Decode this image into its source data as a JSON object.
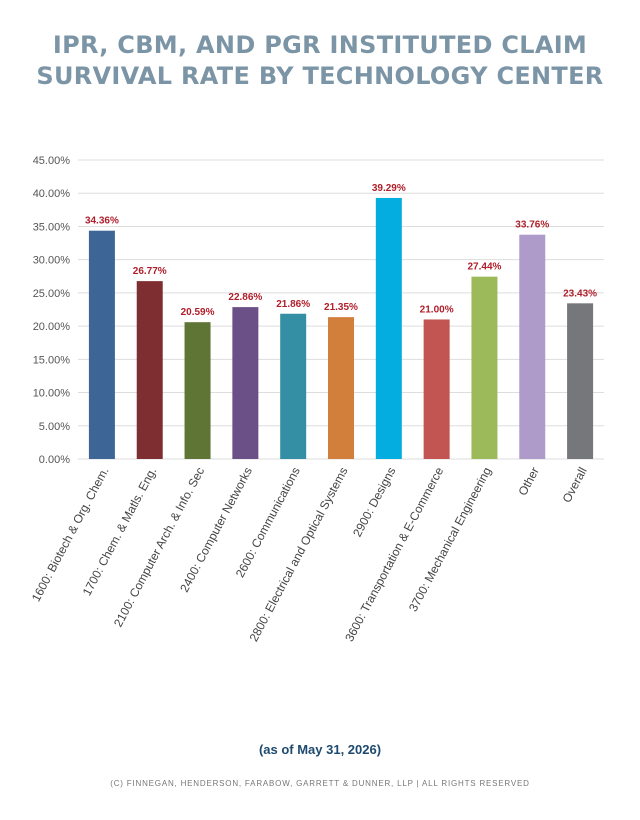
{
  "chart_data": {
    "type": "bar",
    "title_lines": [
      "IPR, CBM, AND PGR INSTITUTED CLAIM",
      "SURVIVAL RATE BY TECHNOLOGY CENTER"
    ],
    "categories": [
      "1600: Biotech & Org. Chem.",
      "1700: Chem. & Matls. Eng.",
      "2100: Computer Arch. & Info. Sec",
      "2400: Computer Networks",
      "2600: Communications",
      "2800: Electrical and Optical Systems",
      "2900: Designs",
      "3600: Transportation & E-Commerce",
      "3700: Mechanical Engineering",
      "Other",
      "Overall"
    ],
    "values": [
      34.36,
      26.77,
      20.59,
      22.86,
      21.86,
      21.35,
      39.29,
      21.0,
      27.44,
      33.76,
      23.43
    ],
    "value_labels": [
      "34.36%",
      "26.77%",
      "20.59%",
      "22.86%",
      "21.86%",
      "21.35%",
      "39.29%",
      "21.00%",
      "27.44%",
      "33.76%",
      "23.43%"
    ],
    "bar_colors": [
      "#3d6596",
      "#7e2e31",
      "#5e7535",
      "#6a5087",
      "#348fa4",
      "#d17f3b",
      "#04ade0",
      "#c25452",
      "#9cba5a",
      "#ae9bc9",
      "#76777b"
    ],
    "ylim": [
      0,
      45
    ],
    "y_ticks": [
      0,
      5,
      10,
      15,
      20,
      25,
      30,
      35,
      40,
      45
    ],
    "y_tick_labels": [
      "0.00%",
      "5.00%",
      "10.00%",
      "15.00%",
      "20.00%",
      "25.00%",
      "30.00%",
      "35.00%",
      "40.00%",
      "45.00%"
    ],
    "grid": true,
    "legend": "none"
  },
  "footer": {
    "as_of": "(as of May 31, 2026)",
    "copyright": "(C) FINNEGAN, HENDERSON, FARABOW, GARRETT & DUNNER, LLP | ALL RIGHTS RESERVED"
  },
  "colors": {
    "title": "#7b95a6",
    "data_label": "#b01e2a",
    "as_of": "#1d4a6e",
    "grid": "#dddddd"
  }
}
